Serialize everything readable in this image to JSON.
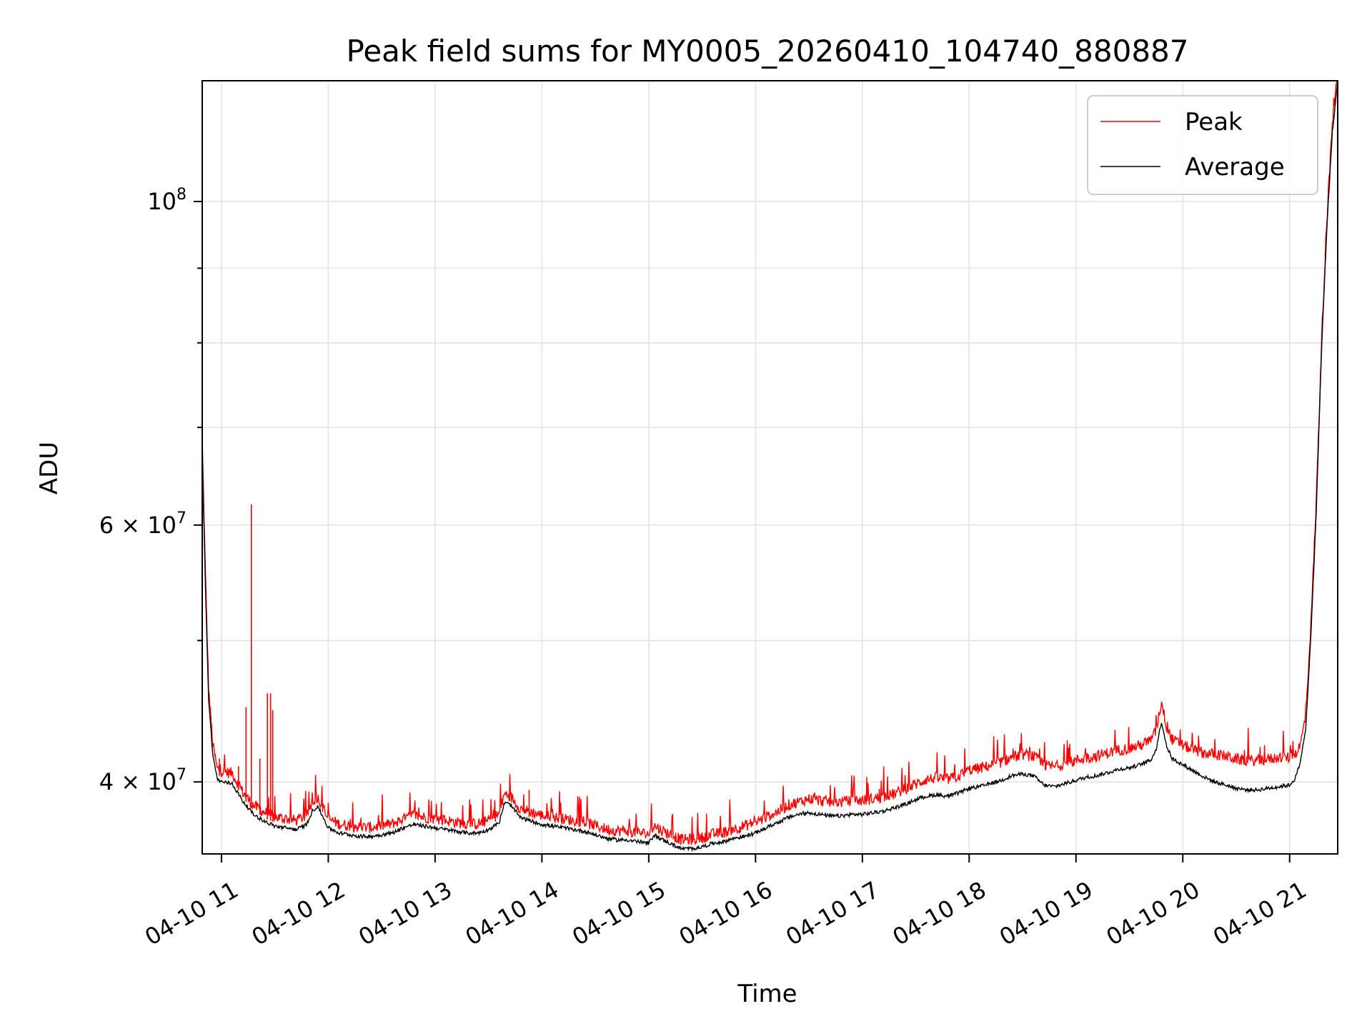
{
  "chart_data": {
    "type": "line",
    "title": "Peak field sums for MY0005_20260410_104740_880887",
    "xlabel": "Time",
    "ylabel": "ADU",
    "x_unit": "hour of 2026-04-10",
    "xlim": [
      10.82,
      21.45
    ],
    "ylim": [
      35700000,
      121000000
    ],
    "y_scale": "log",
    "grid": true,
    "legend_position": "top-right",
    "x_tick_values": [
      11,
      12,
      13,
      14,
      15,
      16,
      17,
      18,
      19,
      20,
      21
    ],
    "x_tick_labels": [
      "04-10 11",
      "04-10 12",
      "04-10 13",
      "04-10 14",
      "04-10 15",
      "04-10 16",
      "04-10 17",
      "04-10 18",
      "04-10 19",
      "04-10 20",
      "04-10 21"
    ],
    "y_major_ticks": [
      {
        "value": 40000000,
        "mantissa": "4",
        "exponent": "7"
      },
      {
        "value": 60000000,
        "mantissa": "6",
        "exponent": "7"
      },
      {
        "value": 100000000,
        "mantissa": "",
        "exponent": "8"
      }
    ],
    "y_minor_ticks": [
      50000000,
      70000000,
      80000000,
      90000000
    ],
    "series": [
      {
        "name": "Peak",
        "color": "#ff0000",
        "x": [
          10.82,
          10.85,
          10.88,
          10.92,
          10.96,
          11.0,
          11.1,
          11.2,
          11.3,
          11.4,
          11.5,
          11.6,
          11.7,
          11.8,
          11.85,
          11.9,
          12.0,
          12.1,
          12.2,
          12.3,
          12.4,
          12.5,
          12.6,
          12.7,
          12.8,
          12.9,
          13.0,
          13.1,
          13.2,
          13.3,
          13.4,
          13.5,
          13.6,
          13.65,
          13.7,
          13.8,
          13.9,
          14.0,
          14.1,
          14.2,
          14.3,
          14.4,
          14.5,
          14.6,
          14.7,
          14.8,
          14.9,
          15.0,
          15.05,
          15.1,
          15.2,
          15.3,
          15.4,
          15.5,
          15.6,
          15.7,
          15.8,
          15.9,
          16.0,
          16.1,
          16.2,
          16.3,
          16.4,
          16.5,
          16.6,
          16.7,
          16.8,
          16.9,
          17.0,
          17.1,
          17.2,
          17.3,
          17.4,
          17.5,
          17.6,
          17.7,
          17.8,
          17.9,
          18.0,
          18.1,
          18.2,
          18.3,
          18.4,
          18.5,
          18.6,
          18.7,
          18.8,
          18.9,
          19.0,
          19.1,
          19.2,
          19.3,
          19.4,
          19.5,
          19.6,
          19.7,
          19.75,
          19.8,
          19.85,
          19.9,
          20.0,
          20.1,
          20.2,
          20.3,
          20.4,
          20.5,
          20.6,
          20.7,
          20.8,
          20.9,
          21.0,
          21.05,
          21.1,
          21.15,
          21.2,
          21.25,
          21.3,
          21.35,
          21.4,
          21.45
        ],
        "y": [
          68000000,
          55000000,
          46000000,
          42000000,
          40500000,
          40300000,
          40200000,
          39000000,
          38200000,
          37800000,
          37500000,
          37400000,
          37300000,
          37600000,
          38400000,
          38700000,
          37400000,
          37100000,
          37000000,
          36900000,
          36900000,
          37000000,
          37100000,
          37400000,
          37600000,
          37500000,
          37400000,
          37300000,
          37200000,
          37100000,
          37100000,
          37300000,
          37700000,
          38900000,
          38800000,
          38000000,
          37800000,
          37600000,
          37500000,
          37400000,
          37300000,
          37200000,
          37000000,
          36800000,
          36700000,
          36700000,
          36600000,
          36500000,
          37000000,
          36800000,
          36500000,
          36200000,
          36200000,
          36300000,
          36500000,
          36600000,
          36800000,
          37000000,
          37200000,
          37500000,
          37800000,
          38200000,
          38400000,
          38600000,
          38500000,
          38400000,
          38400000,
          38500000,
          38500000,
          38600000,
          38700000,
          38900000,
          39200000,
          39500000,
          39800000,
          39900000,
          39800000,
          40000000,
          40400000,
          40500000,
          40700000,
          40900000,
          41200000,
          41400000,
          41300000,
          40700000,
          40600000,
          40800000,
          41000000,
          41200000,
          41300000,
          41500000,
          41700000,
          41800000,
          42000000,
          42300000,
          43000000,
          45000000,
          43200000,
          42400000,
          42000000,
          41700000,
          41500000,
          41400000,
          41300000,
          41100000,
          41000000,
          41000000,
          41100000,
          41200000,
          41200000,
          41400000,
          42000000,
          44000000,
          51000000,
          62000000,
          80000000,
          97000000,
          112000000,
          121000000
        ],
        "spikes": [
          {
            "x": 10.98,
            "y": 41500000
          },
          {
            "x": 11.16,
            "y": 41000000
          },
          {
            "x": 11.23,
            "y": 45000000
          },
          {
            "x": 11.28,
            "y": 62000000
          },
          {
            "x": 11.36,
            "y": 41500000
          },
          {
            "x": 11.43,
            "y": 46000000
          },
          {
            "x": 11.46,
            "y": 46000000
          },
          {
            "x": 11.48,
            "y": 44800000
          },
          {
            "x": 13.7,
            "y": 40000000
          },
          {
            "x": 13.88,
            "y": 39500000
          }
        ]
      },
      {
        "name": "Average",
        "color": "#000000",
        "x": [
          10.82,
          10.85,
          10.88,
          10.92,
          10.96,
          11.0,
          11.1,
          11.2,
          11.3,
          11.4,
          11.5,
          11.6,
          11.7,
          11.8,
          11.85,
          11.9,
          12.0,
          12.1,
          12.2,
          12.3,
          12.4,
          12.5,
          12.6,
          12.7,
          12.8,
          12.9,
          13.0,
          13.1,
          13.2,
          13.3,
          13.4,
          13.5,
          13.6,
          13.65,
          13.7,
          13.8,
          13.9,
          14.0,
          14.1,
          14.2,
          14.3,
          14.4,
          14.5,
          14.6,
          14.7,
          14.8,
          14.9,
          15.0,
          15.05,
          15.1,
          15.2,
          15.3,
          15.4,
          15.5,
          15.6,
          15.7,
          15.8,
          15.9,
          16.0,
          16.1,
          16.2,
          16.3,
          16.4,
          16.5,
          16.6,
          16.7,
          16.8,
          16.9,
          17.0,
          17.1,
          17.2,
          17.3,
          17.4,
          17.5,
          17.6,
          17.7,
          17.8,
          17.9,
          18.0,
          18.1,
          18.2,
          18.3,
          18.4,
          18.5,
          18.6,
          18.7,
          18.8,
          18.9,
          19.0,
          19.1,
          19.2,
          19.3,
          19.4,
          19.5,
          19.6,
          19.7,
          19.75,
          19.8,
          19.85,
          19.9,
          20.0,
          20.1,
          20.2,
          20.3,
          20.4,
          20.5,
          20.6,
          20.7,
          20.8,
          20.9,
          21.0,
          21.05,
          21.1,
          21.15,
          21.2,
          21.25,
          21.3,
          21.35,
          21.4,
          21.45
        ],
        "y": [
          67000000,
          54500000,
          45500000,
          41700000,
          40200000,
          40000000,
          39900000,
          38800000,
          38000000,
          37600000,
          37300000,
          37200000,
          37100000,
          37400000,
          38200000,
          38500000,
          37200000,
          36900000,
          36800000,
          36700000,
          36700000,
          36800000,
          36900000,
          37200000,
          37400000,
          37300000,
          37200000,
          37100000,
          37000000,
          36900000,
          36900000,
          37100000,
          37500000,
          38700000,
          38600000,
          37800000,
          37600000,
          37400000,
          37300000,
          37200000,
          37100000,
          37000000,
          36800000,
          36600000,
          36500000,
          36500000,
          36400000,
          36300000,
          36800000,
          36600000,
          36300000,
          36000000,
          36000000,
          36100000,
          36300000,
          36400000,
          36600000,
          36700000,
          36900000,
          37200000,
          37500000,
          37800000,
          38000000,
          38100000,
          38000000,
          37900000,
          37900000,
          38000000,
          38000000,
          38100000,
          38200000,
          38400000,
          38600000,
          38900000,
          39100000,
          39200000,
          39100000,
          39300000,
          39600000,
          39700000,
          39900000,
          40100000,
          40400000,
          40500000,
          40400000,
          39800000,
          39700000,
          39900000,
          40100000,
          40300000,
          40400000,
          40600000,
          40800000,
          40900000,
          41100000,
          41400000,
          42100000,
          44000000,
          42300000,
          41500000,
          41100000,
          40700000,
          40300000,
          40000000,
          39800000,
          39600000,
          39500000,
          39500000,
          39600000,
          39700000,
          39800000,
          40200000,
          41200000,
          43500000,
          50500000,
          61500000,
          79500000,
          96500000,
          111500000,
          121000000
        ]
      }
    ]
  }
}
